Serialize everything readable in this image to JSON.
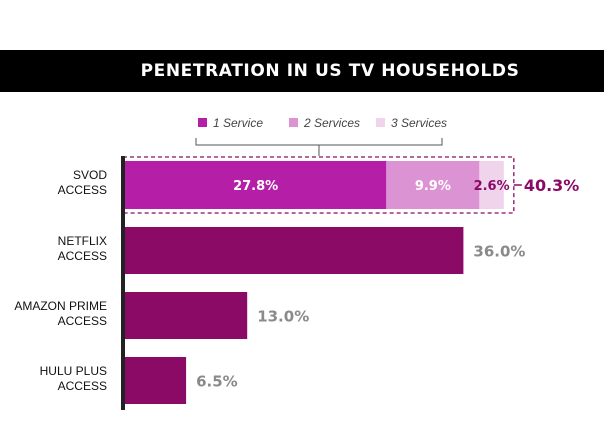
{
  "title": "PENETRATION IN US TV HOUSEHOLDS",
  "chart_data": {
    "type": "bar",
    "orientation": "horizontal",
    "title": "PENETRATION IN US TV HOUSEHOLDS",
    "xlabel": "",
    "ylabel": "",
    "xlim": [
      0,
      45
    ],
    "grid": false,
    "legend": {
      "position": "top",
      "entries": [
        "1 Service",
        "2 Services",
        "3 Services"
      ]
    },
    "stacked_bar": {
      "category": [
        "SVOD",
        "ACCESS"
      ],
      "segments": [
        {
          "name": "1 Service",
          "value": 27.8,
          "label": "27.8%",
          "color": "#b51ea6"
        },
        {
          "name": "2 Services",
          "value": 9.9,
          "label": "9.9%",
          "color": "#dc93d4"
        },
        {
          "name": "3 Services",
          "value": 2.6,
          "label": "2.6%",
          "color": "#f0d4ec"
        }
      ],
      "total": 40.3,
      "total_label": "40.3%"
    },
    "bars": [
      {
        "category": [
          "NETFLIX",
          "ACCESS"
        ],
        "value": 36.0,
        "label": "36.0%"
      },
      {
        "category": [
          "AMAZON PRIME",
          "ACCESS"
        ],
        "value": 13.0,
        "label": "13.0%"
      },
      {
        "category": [
          "HULU PLUS",
          "ACCESS"
        ],
        "value": 6.5,
        "label": "6.5%"
      }
    ],
    "colors": {
      "bar": "#8b0a66",
      "total": "#8b0a66",
      "value_label": "#8a8a8a",
      "highlight_border": "#8b0a66",
      "axis": "#222222"
    }
  }
}
